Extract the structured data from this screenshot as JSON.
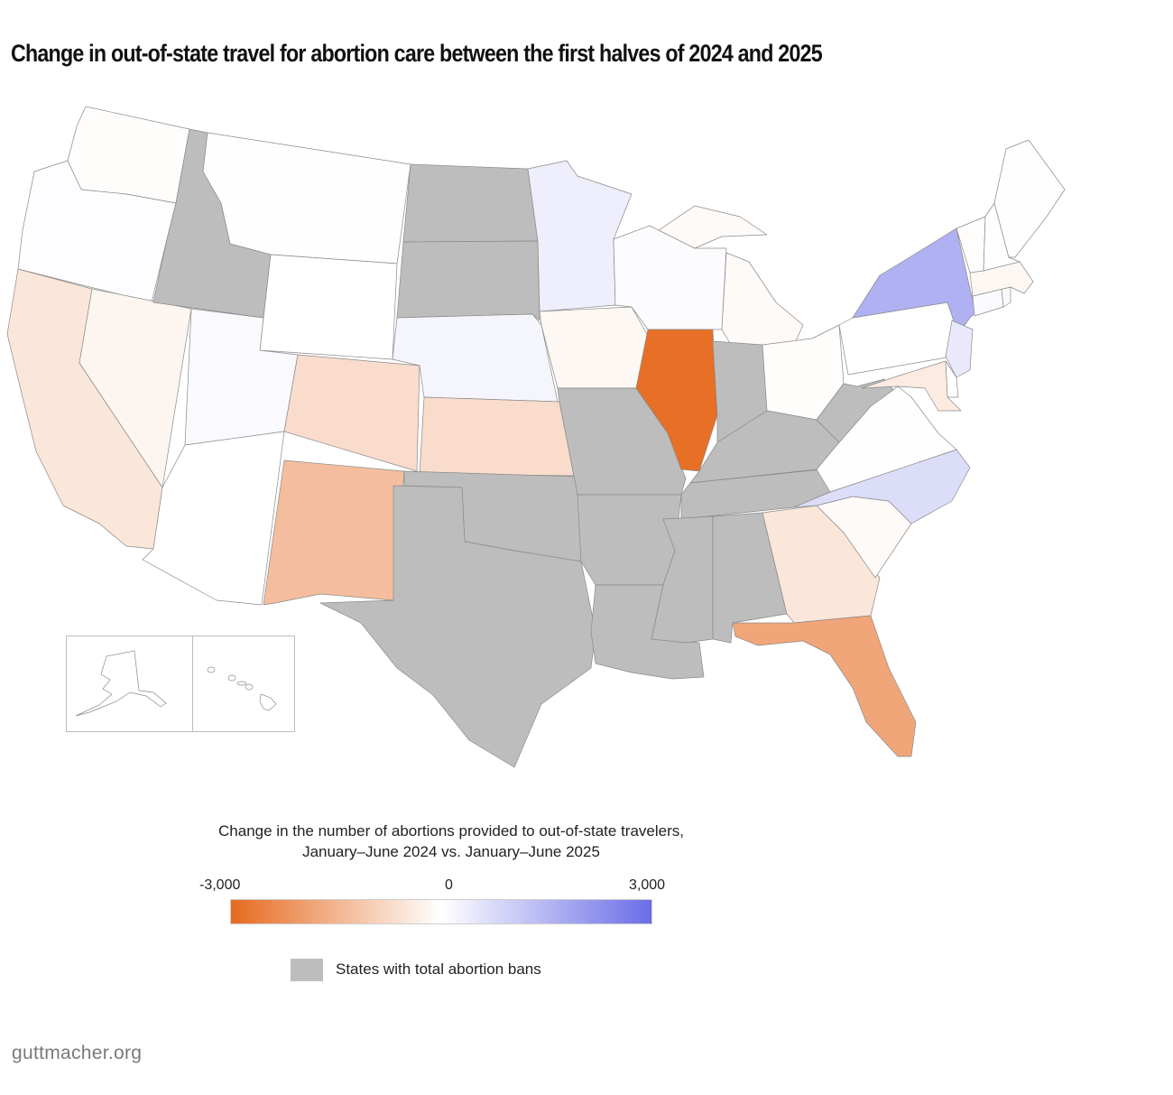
{
  "title": "Change in out-of-state travel for abortion care between the first halves of 2024 and 2025",
  "legend": {
    "title_line1": "Change in the number of abortions provided to out-of-state travelers,",
    "title_line2": "January–June 2024 vs. January–June 2025",
    "min_label": "-3,000",
    "mid_label": "0",
    "max_label": "3,000",
    "scale": {
      "min": -3000,
      "mid": 0,
      "max": 3000
    },
    "colors": {
      "min": "#e66a1f",
      "mid": "#ffffff",
      "max": "#6a6de6"
    },
    "ban_label": "States with total abortion bans",
    "ban_color": "#bdbdbd"
  },
  "source": "guttmacher.org",
  "chart_data": {
    "type": "choropleth",
    "title": "Change in out-of-state travel for abortion care between the first halves of 2024 and 2025",
    "value_label": "Change in the number of abortions provided to out-of-state travelers, January–June 2024 vs. January–June 2025",
    "range": [
      -3000,
      3000
    ],
    "states": [
      {
        "state": "Illinois",
        "abbr": "IL",
        "value": -2900
      },
      {
        "state": "Florida",
        "abbr": "FL",
        "value": -1800
      },
      {
        "state": "New Mexico",
        "abbr": "NM",
        "value": -1300
      },
      {
        "state": "Colorado",
        "abbr": "CO",
        "value": -700
      },
      {
        "state": "Kansas",
        "abbr": "KS",
        "value": -700
      },
      {
        "state": "California",
        "abbr": "CA",
        "value": -500
      },
      {
        "state": "Georgia",
        "abbr": "GA",
        "value": -500
      },
      {
        "state": "Maryland",
        "abbr": "MD",
        "value": -400
      },
      {
        "state": "Nevada",
        "abbr": "NV",
        "value": -200
      },
      {
        "state": "Iowa",
        "abbr": "IA",
        "value": -150
      },
      {
        "state": "Massachusetts",
        "abbr": "MA",
        "value": -150
      },
      {
        "state": "Michigan",
        "abbr": "MI",
        "value": -100
      },
      {
        "state": "South Carolina",
        "abbr": "SC",
        "value": -100
      },
      {
        "state": "Ohio",
        "abbr": "OH",
        "value": -50
      },
      {
        "state": "Vermont",
        "abbr": "VT",
        "value": -50
      },
      {
        "state": "Washington",
        "abbr": "WA",
        "value": -50
      },
      {
        "state": "Montana",
        "abbr": "MT",
        "value": -20
      },
      {
        "state": "Wyoming",
        "abbr": "WY",
        "value": 0
      },
      {
        "state": "Arizona",
        "abbr": "AZ",
        "value": 0
      },
      {
        "state": "Pennsylvania",
        "abbr": "PA",
        "value": 0
      },
      {
        "state": "Virginia",
        "abbr": "VA",
        "value": 30
      },
      {
        "state": "Delaware",
        "abbr": "DE",
        "value": 30
      },
      {
        "state": "New Hampshire",
        "abbr": "NH",
        "value": 20
      },
      {
        "state": "Maine",
        "abbr": "ME",
        "value": 20
      },
      {
        "state": "Oregon",
        "abbr": "OR",
        "value": 50
      },
      {
        "state": "Wisconsin",
        "abbr": "WI",
        "value": 60
      },
      {
        "state": "Connecticut",
        "abbr": "CT",
        "value": 100
      },
      {
        "state": "Rhode Island",
        "abbr": "RI",
        "value": 100
      },
      {
        "state": "Utah",
        "abbr": "UT",
        "value": 120
      },
      {
        "state": "Nebraska",
        "abbr": "NE",
        "value": 200
      },
      {
        "state": "Minnesota",
        "abbr": "MN",
        "value": 350
      },
      {
        "state": "New Jersey",
        "abbr": "NJ",
        "value": 450
      },
      {
        "state": "North Carolina",
        "abbr": "NC",
        "value": 700
      },
      {
        "state": "New York",
        "abbr": "NY",
        "value": 1600
      },
      {
        "state": "Alaska",
        "abbr": "AK",
        "value": 0
      },
      {
        "state": "Hawaii",
        "abbr": "HI",
        "value": 0
      }
    ],
    "ban_states": [
      "ID",
      "ND",
      "SD",
      "MO",
      "OK",
      "TX",
      "AR",
      "LA",
      "MS",
      "AL",
      "TN",
      "KY",
      "IN",
      "WV"
    ]
  }
}
